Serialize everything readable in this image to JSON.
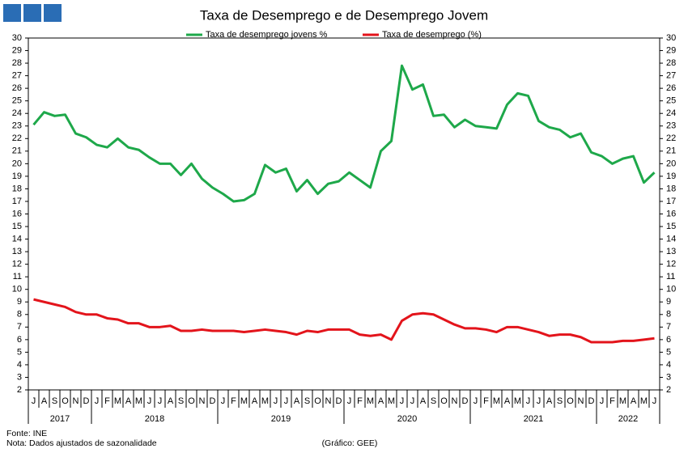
{
  "chart_data": {
    "type": "line",
    "title": "Taxa de Desemprego e de Desemprego Jovem",
    "categories": [
      "J",
      "A",
      "S",
      "O",
      "N",
      "D",
      "J",
      "F",
      "M",
      "A",
      "M",
      "J",
      "J",
      "A",
      "S",
      "O",
      "N",
      "D",
      "J",
      "F",
      "M",
      "A",
      "M",
      "J",
      "J",
      "A",
      "S",
      "O",
      "N",
      "D",
      "J",
      "F",
      "M",
      "A",
      "M",
      "J",
      "J",
      "A",
      "S",
      "O",
      "N",
      "D",
      "J",
      "F",
      "M",
      "A",
      "M",
      "J",
      "J",
      "A",
      "S",
      "O",
      "N",
      "D",
      "J",
      "F",
      "M",
      "A",
      "M",
      "J"
    ],
    "years": [
      "2017",
      "2018",
      "2019",
      "2020",
      "2021",
      "2022"
    ],
    "series": [
      {
        "name": "Taxa de desemprego jovens %",
        "color": "#1ea84a",
        "values": [
          23.1,
          24.1,
          23.8,
          23.9,
          22.4,
          22.1,
          21.5,
          21.3,
          22.0,
          21.3,
          21.1,
          20.5,
          20.0,
          20.0,
          19.1,
          20.0,
          18.8,
          18.1,
          17.6,
          17.0,
          17.1,
          17.6,
          19.9,
          19.3,
          19.6,
          17.8,
          18.7,
          17.6,
          18.4,
          18.6,
          19.3,
          18.7,
          18.1,
          21.0,
          21.8,
          27.8,
          25.9,
          26.3,
          23.8,
          23.9,
          22.9,
          23.5,
          23.0,
          22.9,
          22.8,
          24.7,
          25.6,
          25.4,
          23.4,
          22.9,
          22.7,
          22.1,
          22.4,
          20.9,
          20.6,
          20.0,
          20.4,
          20.6,
          18.5,
          19.3
        ]
      },
      {
        "name": "Taxa de desemprego (%)",
        "color": "#e3141b",
        "values": [
          9.2,
          9.0,
          8.8,
          8.6,
          8.2,
          8.0,
          8.0,
          7.7,
          7.6,
          7.3,
          7.3,
          7.0,
          7.0,
          7.1,
          6.7,
          6.7,
          6.8,
          6.7,
          6.7,
          6.7,
          6.6,
          6.7,
          6.8,
          6.7,
          6.6,
          6.4,
          6.7,
          6.6,
          6.8,
          6.8,
          6.8,
          6.4,
          6.3,
          6.4,
          6.0,
          7.5,
          8.0,
          8.1,
          8.0,
          7.6,
          7.2,
          6.9,
          6.9,
          6.8,
          6.6,
          7.0,
          7.0,
          6.8,
          6.6,
          6.3,
          6.4,
          6.4,
          6.2,
          5.8,
          5.8,
          5.8,
          5.9,
          5.9,
          6.0,
          6.1
        ]
      }
    ],
    "ylim": [
      2,
      30
    ],
    "yticks": [
      2,
      3,
      4,
      5,
      6,
      7,
      8,
      9,
      10,
      11,
      12,
      13,
      14,
      15,
      16,
      17,
      18,
      19,
      20,
      21,
      22,
      23,
      24,
      25,
      26,
      27,
      28,
      29,
      30
    ],
    "y2lim": [
      2,
      30
    ],
    "y2ticks": [
      2,
      3,
      4,
      5,
      6,
      7,
      8,
      9,
      10,
      11,
      12,
      13,
      14,
      15,
      16,
      17,
      18,
      19,
      20,
      21,
      22,
      23,
      24,
      25,
      26,
      27,
      28,
      29,
      30
    ],
    "source": "Fonte: INE",
    "note": "Nota: Dados ajustados de sazonalidade",
    "credit": "(Gráfico: GEE)"
  }
}
